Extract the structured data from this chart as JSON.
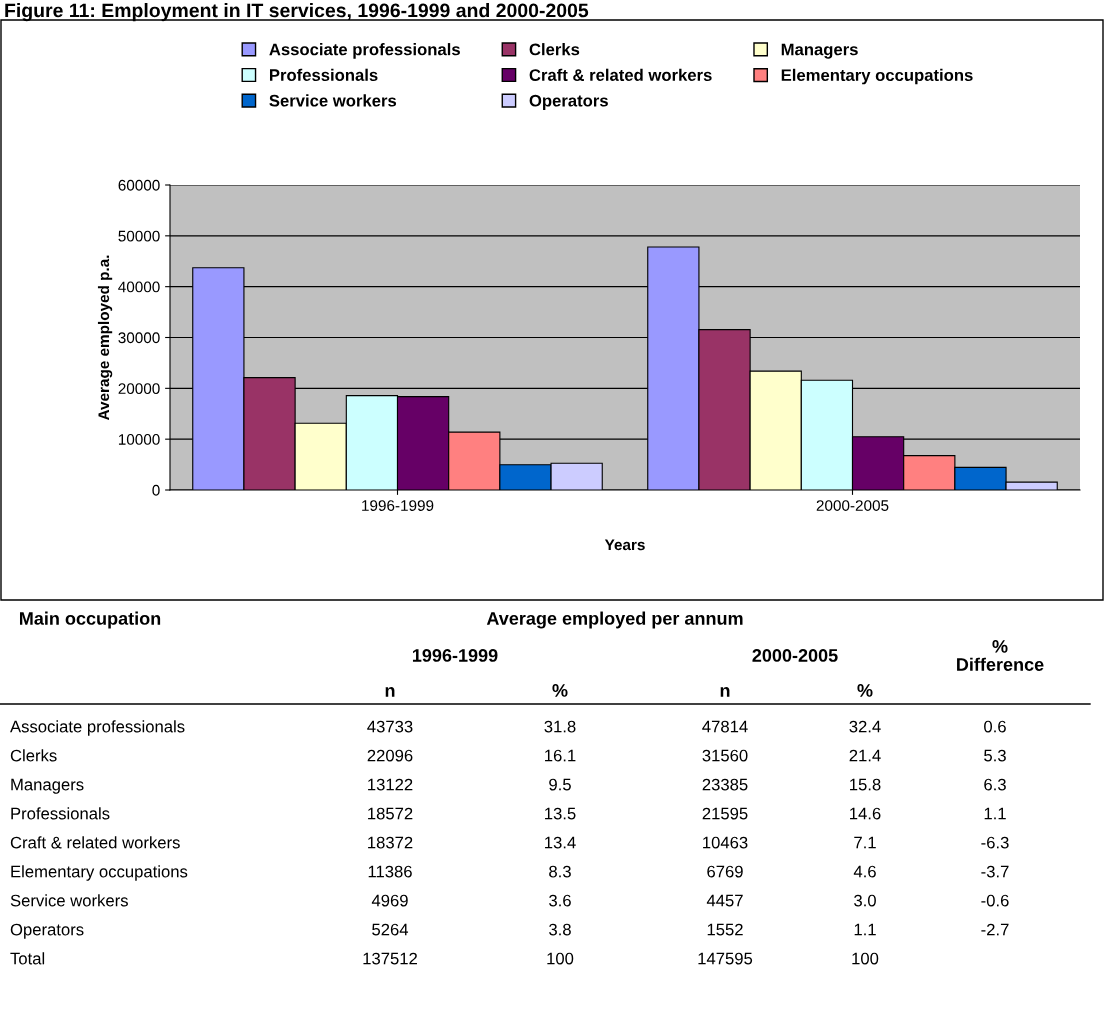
{
  "chart_data": {
    "type": "bar",
    "title": "Figure 11: Employment in IT services, 1996-1999 and 2000-2005",
    "xlabel": "Years",
    "ylabel": "Average employed p.a.",
    "categories": [
      "1996-1999",
      "2000-2005"
    ],
    "series": [
      {
        "name": "Associate professionals",
        "color": "#9999ff",
        "values": [
          43733,
          47814
        ]
      },
      {
        "name": "Clerks",
        "color": "#993366",
        "values": [
          22096,
          31560
        ]
      },
      {
        "name": "Managers",
        "color": "#ffffcc",
        "values": [
          13122,
          23385
        ]
      },
      {
        "name": "Professionals",
        "color": "#ccffff",
        "values": [
          18572,
          21595
        ]
      },
      {
        "name": "Craft & related workers",
        "color": "#660066",
        "values": [
          18372,
          10463
        ]
      },
      {
        "name": "Elementary occupations",
        "color": "#ff8080",
        "values": [
          11386,
          6769
        ]
      },
      {
        "name": "Service workers",
        "color": "#0066cc",
        "values": [
          4969,
          4457
        ]
      },
      {
        "name": "Operators",
        "color": "#ccccff",
        "values": [
          5264,
          1552
        ]
      }
    ],
    "ylim": [
      0,
      60000
    ],
    "yticks": [
      0,
      10000,
      20000,
      30000,
      40000,
      50000,
      60000
    ],
    "grid": "y",
    "legend": "top",
    "data_labels": true,
    "annotations": [
      "Main occupation",
      "Average employed per annum",
      "% Difference",
      "n",
      "%",
      "n",
      "%",
      "31.8",
      "32.4",
      "0.6",
      "16.1",
      "21.4",
      "5.3",
      "9.5",
      "15.8",
      "6.3",
      "13.5",
      "14.6",
      "1.1",
      "13.4",
      "7.1",
      "-6.3",
      "8.3",
      "4.6",
      "-3.7",
      "3.6",
      "3.0",
      "-0.6",
      "3.8",
      "1.1",
      "-2.7",
      "Total",
      "137512",
      "100",
      "147595",
      "100"
    ]
  }
}
